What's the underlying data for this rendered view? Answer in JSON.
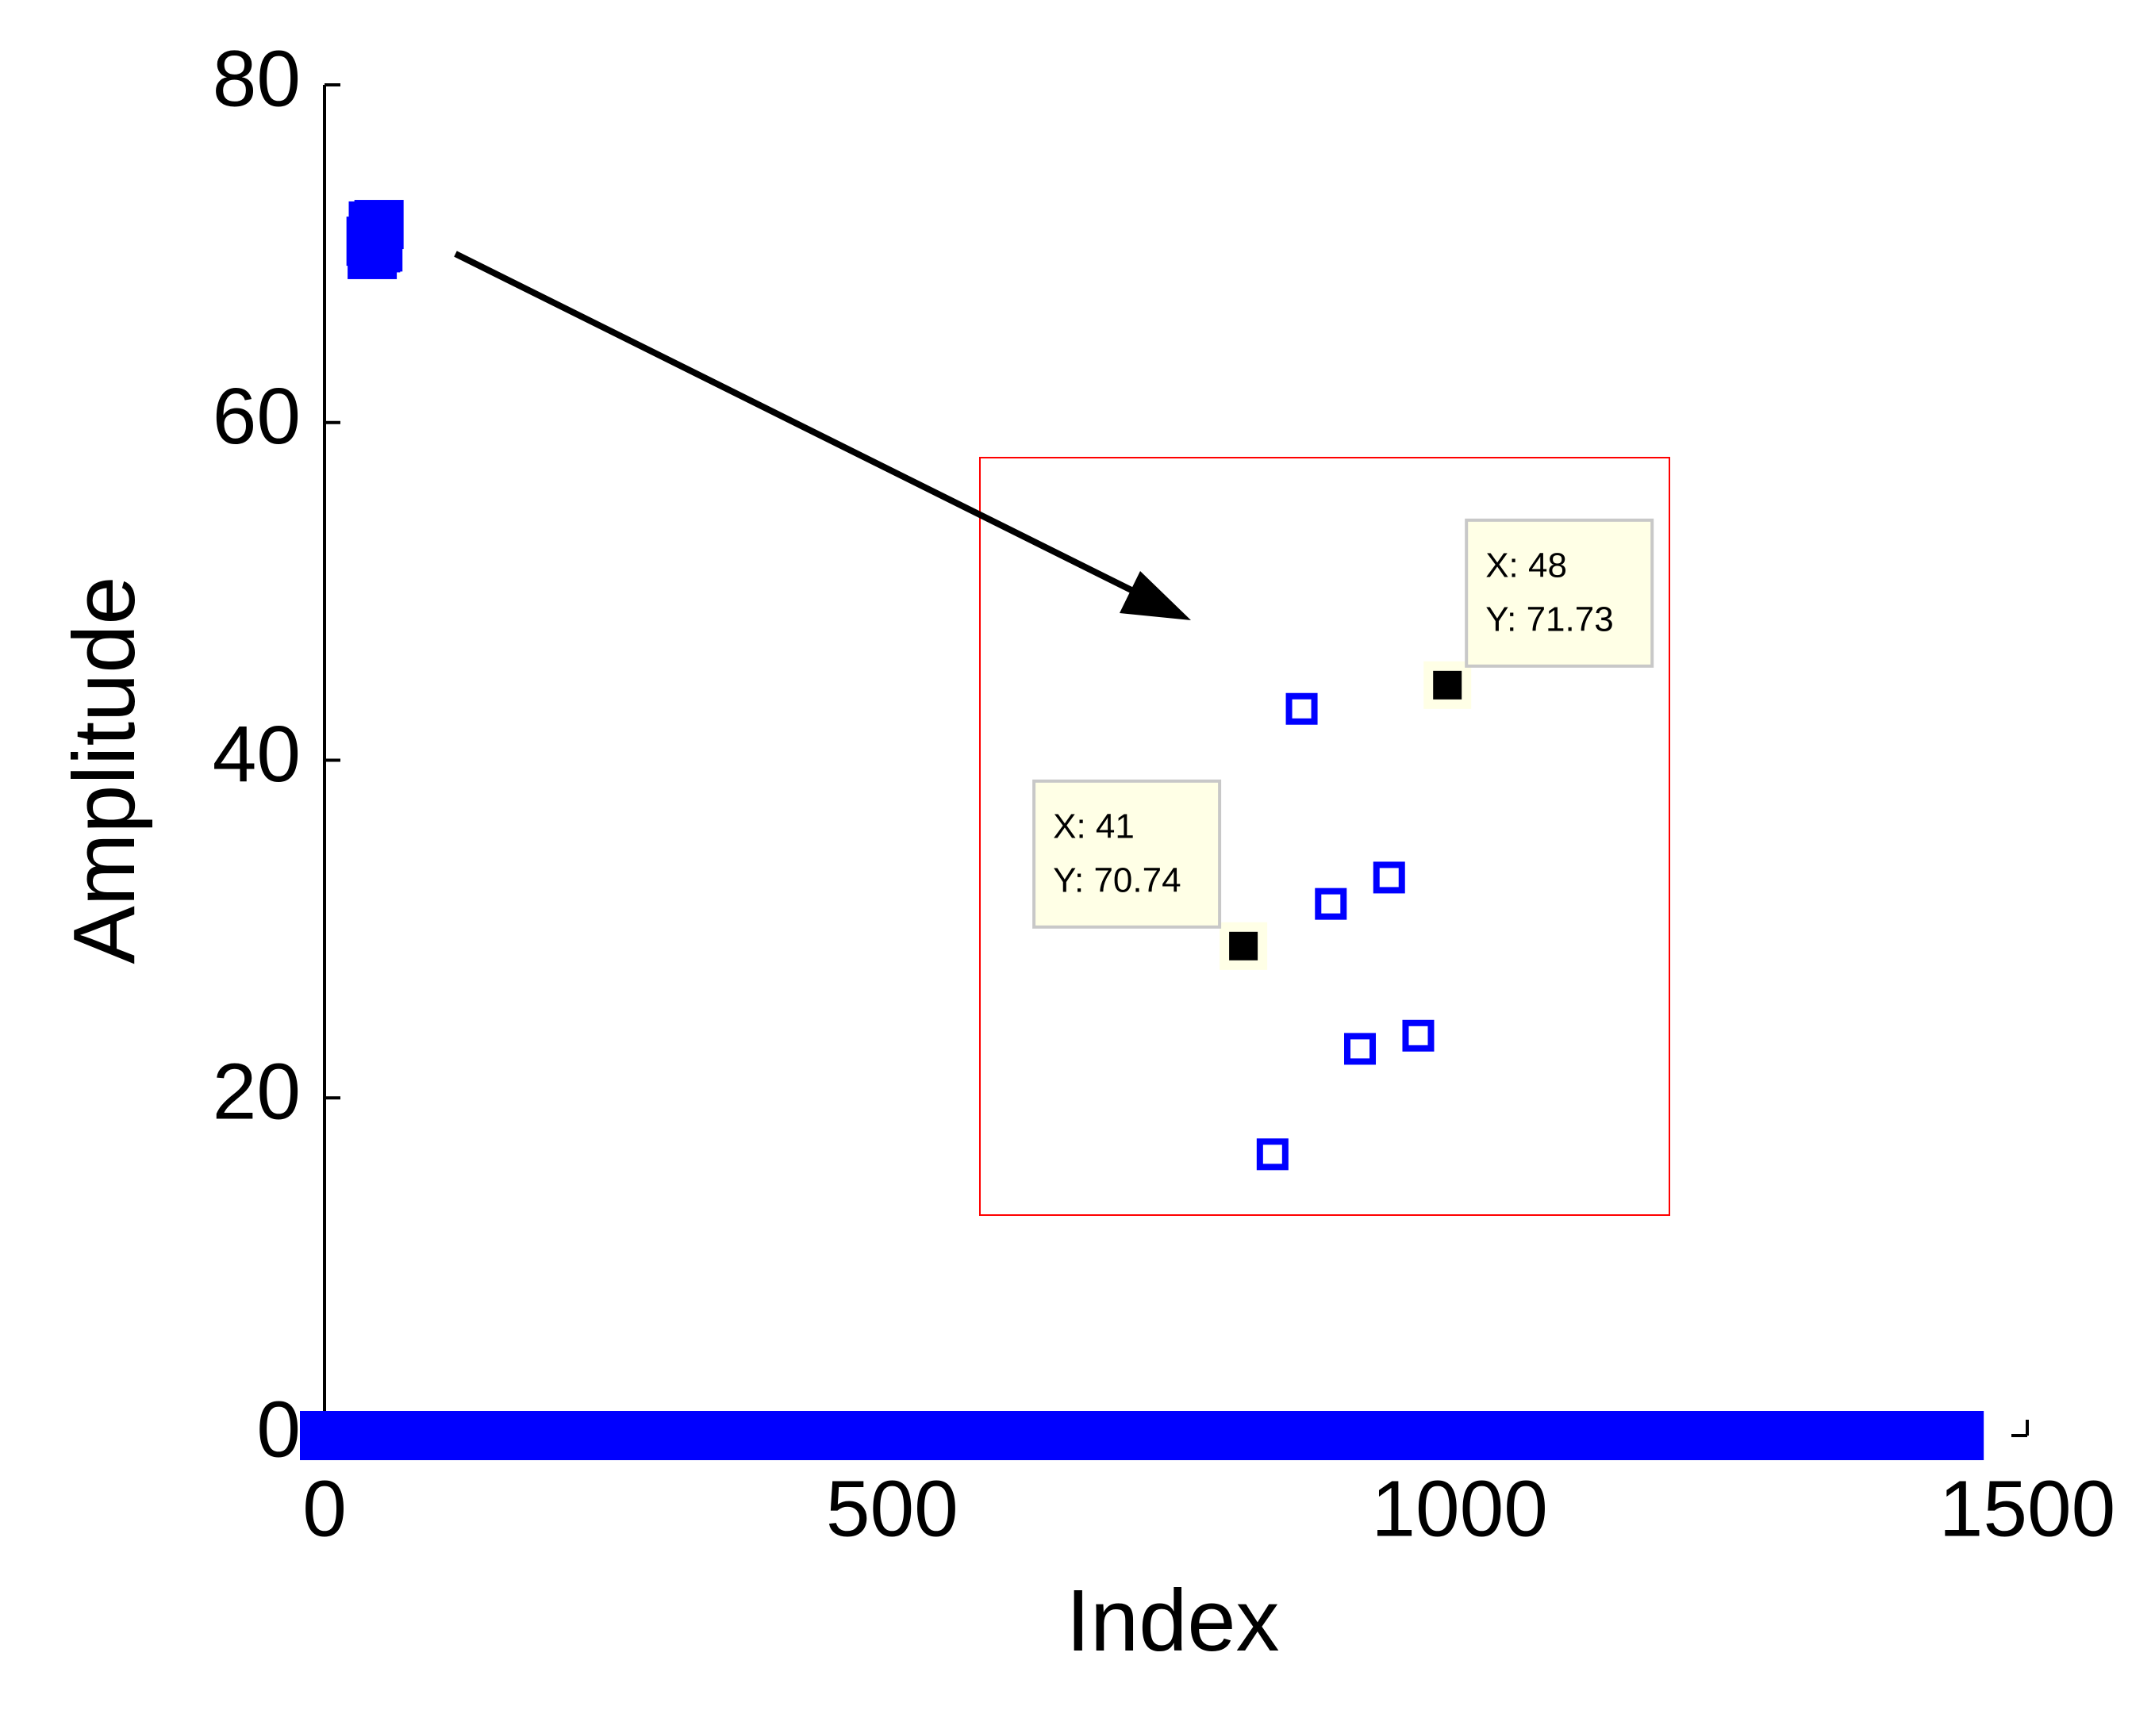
{
  "chart_data": {
    "type": "scatter",
    "xlabel": "Index",
    "ylabel": "Amplitude",
    "xlim": [
      0,
      1500
    ],
    "ylim": [
      0,
      80
    ],
    "xticks": [
      0,
      500,
      1000,
      1500
    ],
    "yticks": [
      0,
      20,
      40,
      60,
      80
    ],
    "series": [
      {
        "color": "#0000ff",
        "x": [
          0,
          40,
          80,
          120,
          160,
          200,
          240,
          280,
          320,
          360,
          400,
          440,
          480,
          520,
          560,
          600,
          640,
          680,
          720,
          760,
          800,
          840,
          880,
          920,
          960,
          1000,
          1040,
          1080,
          1120,
          1160,
          1200,
          1240,
          1280,
          1320,
          1360,
          1400,
          1440
        ],
        "values": [
          0,
          0,
          0,
          0,
          0,
          0,
          0,
          0,
          0,
          0,
          0,
          0,
          0,
          0,
          0,
          0,
          0,
          0,
          0,
          0,
          0,
          0,
          0,
          0,
          0,
          0,
          0,
          0,
          0,
          0,
          0,
          0,
          0,
          0,
          0,
          0,
          0
        ]
      },
      {
        "color": "#0000ff",
        "x": [
          41,
          42,
          43,
          44,
          45,
          46,
          47,
          48
        ],
        "values": [
          70.74,
          69.95,
          71.64,
          70.9,
          70.35,
          71.0,
          70.4,
          71.73
        ]
      }
    ],
    "datatips": [
      {
        "x": 41,
        "y": 70.74,
        "label": [
          "X: 41",
          "Y: 70.74"
        ]
      },
      {
        "x": 48,
        "y": 71.73,
        "label": [
          "X: 48",
          "Y: 71.73"
        ]
      }
    ]
  }
}
